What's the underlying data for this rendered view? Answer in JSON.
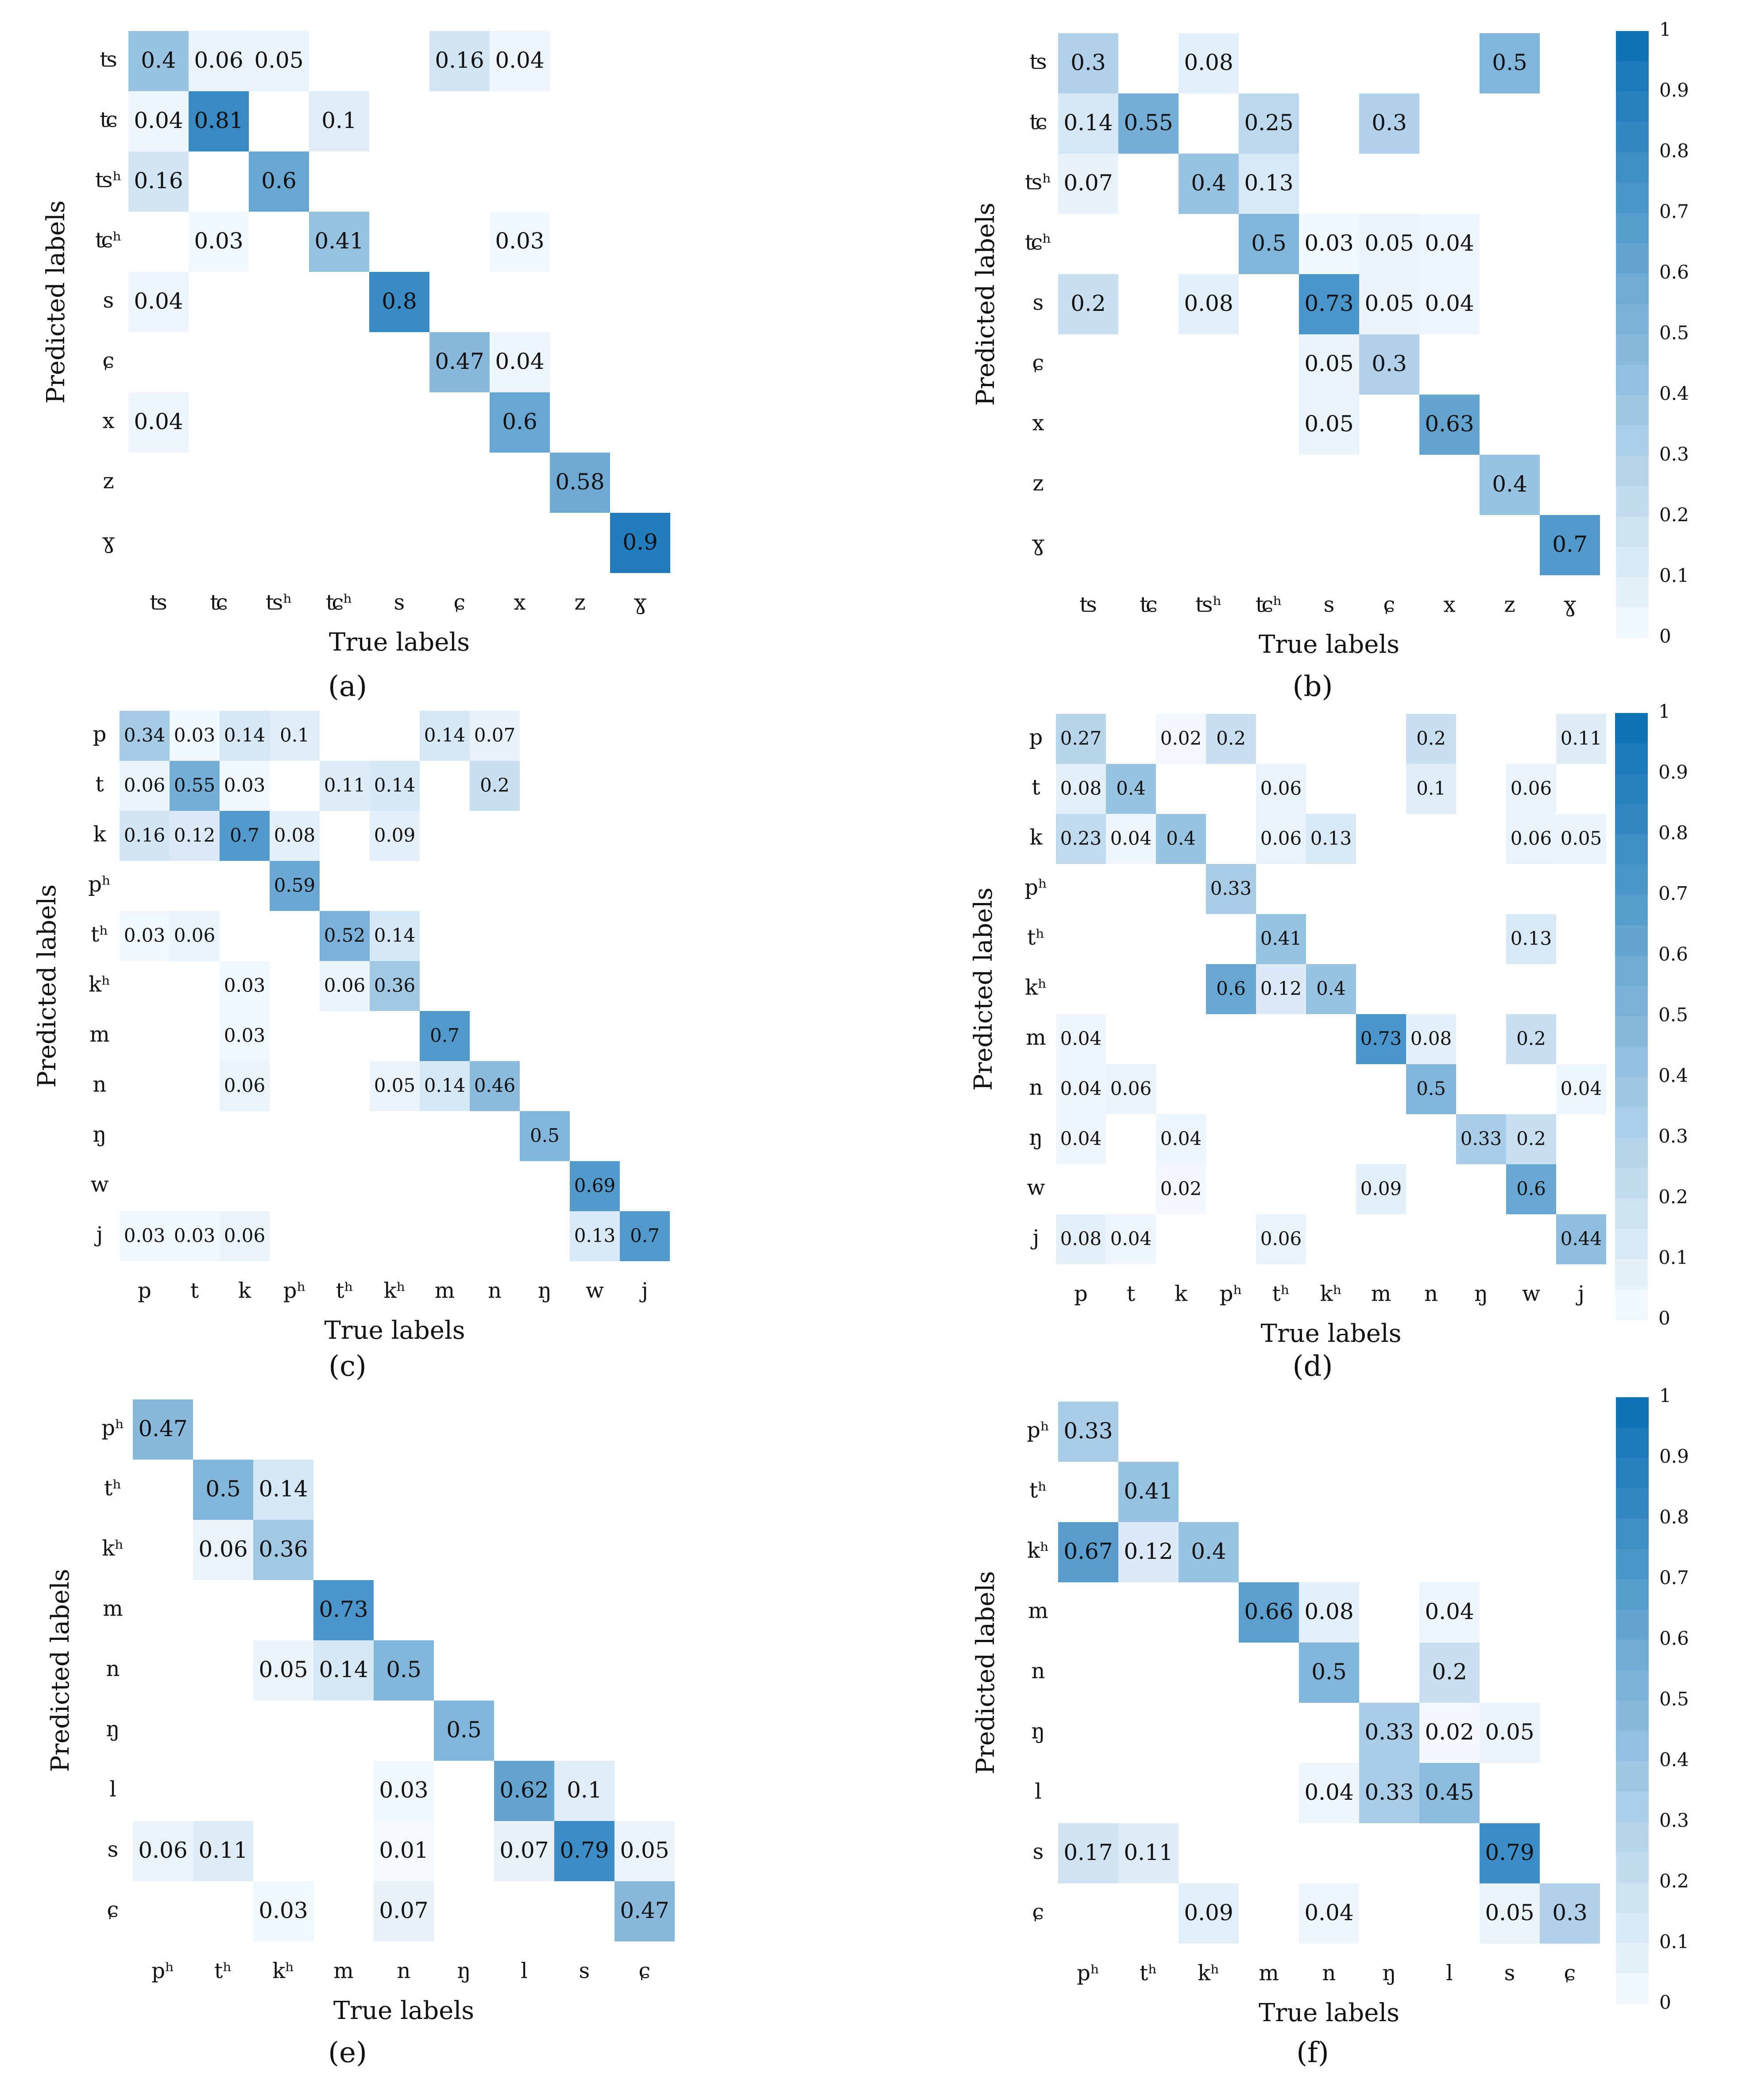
{
  "colors": {
    "low": "#f7fbff",
    "high": "#0a6fb5",
    "text": "#111111"
  },
  "chart_data": [
    {
      "type": "heatmap",
      "caption": "(a)",
      "xlabel": "True labels",
      "ylabel": "Predicted labels",
      "labels": [
        "ʦ",
        "ʨ",
        "ʦʰ",
        "ʨʰ",
        "s",
        "ɕ",
        "x",
        "z",
        "ɣ"
      ],
      "matrix": [
        [
          0.4,
          0.06,
          0.05,
          null,
          null,
          0.16,
          0.04,
          null,
          null
        ],
        [
          0.04,
          0.81,
          null,
          0.1,
          null,
          null,
          null,
          null,
          null
        ],
        [
          0.16,
          null,
          0.6,
          null,
          null,
          null,
          null,
          null,
          null
        ],
        [
          null,
          0.03,
          null,
          0.41,
          null,
          null,
          0.03,
          null,
          null
        ],
        [
          0.04,
          null,
          null,
          null,
          0.8,
          null,
          null,
          null,
          null
        ],
        [
          null,
          null,
          null,
          null,
          null,
          0.47,
          0.04,
          null,
          null
        ],
        [
          0.04,
          null,
          null,
          null,
          null,
          null,
          0.6,
          null,
          null
        ],
        [
          null,
          null,
          null,
          null,
          null,
          null,
          null,
          0.58,
          null
        ],
        [
          null,
          null,
          null,
          null,
          null,
          null,
          null,
          null,
          0.9
        ]
      ],
      "vmin": 0,
      "vmax": 1,
      "colorbar": false
    },
    {
      "type": "heatmap",
      "caption": "(b)",
      "xlabel": "True labels",
      "ylabel": "Predicted labels",
      "labels": [
        "ʦ",
        "ʨ",
        "ʦʰ",
        "ʨʰ",
        "s",
        "ɕ",
        "x",
        "z",
        "ɣ"
      ],
      "matrix": [
        [
          0.3,
          null,
          0.08,
          null,
          null,
          null,
          null,
          0.5,
          null
        ],
        [
          0.14,
          0.55,
          null,
          0.25,
          null,
          0.3,
          null,
          null,
          null
        ],
        [
          0.07,
          null,
          0.4,
          0.13,
          null,
          null,
          null,
          null,
          null
        ],
        [
          null,
          null,
          null,
          0.5,
          0.03,
          0.05,
          0.04,
          null,
          null
        ],
        [
          0.2,
          null,
          0.08,
          null,
          0.73,
          0.05,
          0.04,
          null,
          null
        ],
        [
          null,
          null,
          null,
          null,
          0.05,
          0.3,
          null,
          null,
          null
        ],
        [
          null,
          null,
          null,
          null,
          0.05,
          null,
          0.63,
          null,
          null
        ],
        [
          null,
          null,
          null,
          null,
          null,
          null,
          null,
          0.4,
          null
        ],
        [
          null,
          null,
          null,
          null,
          null,
          null,
          null,
          null,
          0.7
        ]
      ],
      "vmin": 0,
      "vmax": 1,
      "colorbar": true,
      "colorbar_ticks": [
        "0",
        "0.1",
        "0.2",
        "0.3",
        "0.4",
        "0.5",
        "0.6",
        "0.7",
        "0.8",
        "0.9",
        "1"
      ]
    },
    {
      "type": "heatmap",
      "caption": "(c)",
      "xlabel": "True labels",
      "ylabel": "Predicted labels",
      "labels": [
        "p",
        "t",
        "k",
        "pʰ",
        "tʰ",
        "kʰ",
        "m",
        "n",
        "ŋ",
        "w",
        "j"
      ],
      "matrix": [
        [
          0.34,
          0.03,
          0.14,
          0.1,
          null,
          null,
          0.14,
          0.07,
          null,
          null,
          null
        ],
        [
          0.06,
          0.55,
          0.03,
          null,
          0.11,
          0.14,
          null,
          0.2,
          null,
          null,
          null
        ],
        [
          0.16,
          0.12,
          0.7,
          0.08,
          null,
          0.09,
          null,
          null,
          null,
          null,
          null
        ],
        [
          null,
          null,
          null,
          0.59,
          null,
          null,
          null,
          null,
          null,
          null,
          null
        ],
        [
          0.03,
          0.06,
          null,
          null,
          0.52,
          0.14,
          null,
          null,
          null,
          null,
          null
        ],
        [
          null,
          null,
          0.03,
          null,
          0.06,
          0.36,
          null,
          null,
          null,
          null,
          null
        ],
        [
          null,
          null,
          0.03,
          null,
          null,
          null,
          0.7,
          null,
          null,
          null,
          null
        ],
        [
          null,
          null,
          0.06,
          null,
          null,
          0.05,
          0.14,
          0.46,
          null,
          null,
          null
        ],
        [
          null,
          null,
          null,
          null,
          null,
          null,
          null,
          null,
          0.5,
          null,
          null
        ],
        [
          null,
          null,
          null,
          null,
          null,
          null,
          null,
          null,
          null,
          0.69,
          null
        ],
        [
          0.03,
          0.03,
          0.06,
          null,
          null,
          null,
          null,
          null,
          null,
          0.13,
          0.7
        ]
      ],
      "vmin": 0,
      "vmax": 1,
      "colorbar": false
    },
    {
      "type": "heatmap",
      "caption": "(d)",
      "xlabel": "True labels",
      "ylabel": "Predicted labels",
      "labels": [
        "p",
        "t",
        "k",
        "pʰ",
        "tʰ",
        "kʰ",
        "m",
        "n",
        "ŋ",
        "w",
        "j"
      ],
      "matrix": [
        [
          0.27,
          null,
          0.02,
          0.2,
          null,
          null,
          null,
          0.2,
          null,
          null,
          0.11
        ],
        [
          0.08,
          0.4,
          null,
          null,
          0.06,
          null,
          null,
          0.1,
          null,
          0.06,
          null
        ],
        [
          0.23,
          0.04,
          0.4,
          null,
          0.06,
          0.13,
          null,
          null,
          null,
          0.06,
          0.05
        ],
        [
          null,
          null,
          null,
          0.33,
          null,
          null,
          null,
          null,
          null,
          null,
          null
        ],
        [
          null,
          null,
          null,
          null,
          0.41,
          null,
          null,
          null,
          null,
          0.13,
          null
        ],
        [
          null,
          null,
          null,
          0.6,
          0.12,
          0.4,
          null,
          null,
          null,
          null,
          null
        ],
        [
          0.04,
          null,
          null,
          null,
          null,
          null,
          0.73,
          0.08,
          null,
          0.2,
          null
        ],
        [
          0.04,
          0.06,
          null,
          null,
          null,
          null,
          null,
          0.5,
          null,
          null,
          0.04
        ],
        [
          0.04,
          null,
          0.04,
          null,
          null,
          null,
          null,
          null,
          0.33,
          0.2,
          null
        ],
        [
          null,
          null,
          0.02,
          null,
          null,
          null,
          0.09,
          null,
          null,
          0.6,
          null
        ],
        [
          0.08,
          0.04,
          null,
          null,
          0.06,
          null,
          null,
          null,
          null,
          null,
          0.44
        ]
      ],
      "vmin": 0,
      "vmax": 1,
      "colorbar": true,
      "colorbar_ticks": [
        "0",
        "0.1",
        "0.2",
        "0.3",
        "0.4",
        "0.5",
        "0.6",
        "0.7",
        "0.8",
        "0.9",
        "1"
      ]
    },
    {
      "type": "heatmap",
      "caption": "(e)",
      "xlabel": "True labels",
      "ylabel": "Predicted labels",
      "labels": [
        "pʰ",
        "tʰ",
        "kʰ",
        "m",
        "n",
        "ŋ",
        "l",
        "s",
        "ɕ"
      ],
      "matrix": [
        [
          0.47,
          null,
          null,
          null,
          null,
          null,
          null,
          null,
          null
        ],
        [
          null,
          0.5,
          0.14,
          null,
          null,
          null,
          null,
          null,
          null
        ],
        [
          null,
          0.06,
          0.36,
          null,
          null,
          null,
          null,
          null,
          null
        ],
        [
          null,
          null,
          null,
          0.73,
          null,
          null,
          null,
          null,
          null
        ],
        [
          null,
          null,
          0.05,
          0.14,
          0.5,
          null,
          null,
          null,
          null
        ],
        [
          null,
          null,
          null,
          null,
          null,
          0.5,
          null,
          null,
          null
        ],
        [
          null,
          null,
          null,
          null,
          0.03,
          null,
          0.62,
          0.1,
          null
        ],
        [
          0.06,
          0.11,
          null,
          null,
          0.01,
          null,
          0.07,
          0.79,
          0.05
        ],
        [
          null,
          null,
          0.03,
          null,
          0.07,
          null,
          null,
          null,
          0.47
        ]
      ],
      "vmin": 0,
      "vmax": 1,
      "colorbar": false
    },
    {
      "type": "heatmap",
      "caption": "(f)",
      "xlabel": "True labels",
      "ylabel": "Predicted labels",
      "labels": [
        "pʰ",
        "tʰ",
        "kʰ",
        "m",
        "n",
        "ŋ",
        "l",
        "s",
        "ɕ"
      ],
      "matrix": [
        [
          0.33,
          null,
          null,
          null,
          null,
          null,
          null,
          null,
          null
        ],
        [
          null,
          0.41,
          null,
          null,
          null,
          null,
          null,
          null,
          null
        ],
        [
          0.67,
          0.12,
          0.4,
          null,
          null,
          null,
          null,
          null,
          null
        ],
        [
          null,
          null,
          null,
          0.66,
          0.08,
          null,
          0.04,
          null,
          null
        ],
        [
          null,
          null,
          null,
          null,
          0.5,
          null,
          0.2,
          null,
          null
        ],
        [
          null,
          null,
          null,
          null,
          null,
          0.33,
          0.02,
          0.05,
          null
        ],
        [
          null,
          null,
          null,
          null,
          0.04,
          0.33,
          0.45,
          null,
          null
        ],
        [
          0.17,
          0.11,
          null,
          null,
          null,
          null,
          null,
          0.79,
          null
        ],
        [
          null,
          null,
          0.09,
          null,
          0.04,
          null,
          null,
          0.05,
          0.3
        ]
      ],
      "vmin": 0,
      "vmax": 1,
      "colorbar": true,
      "colorbar_ticks": [
        "0",
        "0.1",
        "0.2",
        "0.3",
        "0.4",
        "0.5",
        "0.6",
        "0.7",
        "0.8",
        "0.9",
        "1"
      ]
    }
  ]
}
